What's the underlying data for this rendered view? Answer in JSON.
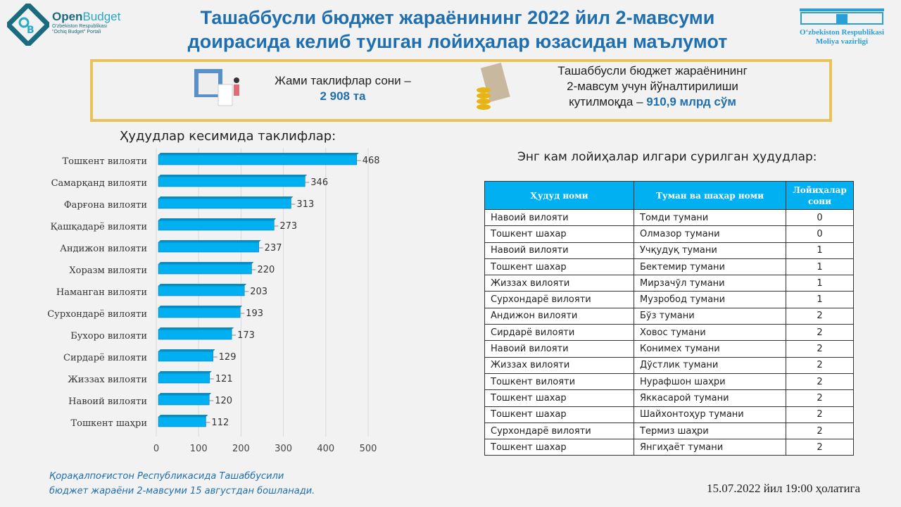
{
  "title": "Ташаббусли бюджет жараёнининг 2022 йил 2-мавсуми доирасида келиб тушган лойиҳалар юзасидан маълумот",
  "logo_left": {
    "name_bold": "Open",
    "name_light": "Budget",
    "line1": "O'zbekiston Respublikasi",
    "line2": "\"Ochiq Budget\" Portali"
  },
  "logo_right": {
    "line1": "O‘zbekiston Respublikasi",
    "line2": "Moliya vazirligi"
  },
  "banner": {
    "left_text": "Жами таклифлар сони –",
    "left_value": "2 908 та",
    "right_line1": "Ташаббусли бюджет жараёнининг",
    "right_line2": "2-мавсум учун йўналтирилиши",
    "right_line3": "кутилмоқда –",
    "right_value": "910,9 млрд сўм"
  },
  "colors": {
    "accent": "#1f6fb0",
    "bar": "#00b0f0",
    "border": "#e8c35a"
  },
  "chart_data": {
    "type": "bar",
    "orientation": "horizontal",
    "title": "Ҳудудлар кесимида таклифлар:",
    "categories": [
      "Тошкент вилояти",
      "Самарқанд вилояти",
      "Фарғона вилояти",
      "Қашқадарё вилояти",
      "Андижон вилояти",
      "Хоразм вилояти",
      "Наманган вилояти",
      "Сурхондарё вилояти",
      "Бухоро вилояти",
      "Сирдарё вилояти",
      "Жиззах вилояти",
      "Навоий вилояти",
      "Тошкент шаҳри"
    ],
    "values": [
      468,
      346,
      313,
      273,
      237,
      220,
      203,
      193,
      173,
      129,
      121,
      120,
      112
    ],
    "xlim": [
      0,
      500
    ],
    "xticks": [
      "0",
      "100",
      "200",
      "300",
      "400",
      "500"
    ],
    "grid": true
  },
  "table": {
    "title": "Энг кам лойиҳалар илгари сурилган ҳудудлар:",
    "headers": [
      "Ҳудуд номи",
      "Туман ва шаҳар номи",
      "Лойиҳалар сони"
    ],
    "rows": [
      [
        "Навоий вилояти",
        "Томди тумани",
        "0"
      ],
      [
        "Тошкент шахар",
        "Олмазор тумани",
        "0"
      ],
      [
        "Навоий вилояти",
        "Учқудуқ тумани",
        "1"
      ],
      [
        "Тошкент шахар",
        "Бектемир тумани",
        "1"
      ],
      [
        "Жиззах вилояти",
        "Мирзачўл тумани",
        "1"
      ],
      [
        "Сурхондарё вилояти",
        "Музробод тумани",
        "1"
      ],
      [
        "Андижон вилояти",
        "Бўз тумани",
        "2"
      ],
      [
        "Сирдарё вилояти",
        "Ховос тумани",
        "2"
      ],
      [
        "Навоий вилояти",
        "Конимех тумани",
        "2"
      ],
      [
        "Жиззах вилояти",
        "Дўстлик тумани",
        "2"
      ],
      [
        "Тошкент вилояти",
        "Нурафшон шаҳри",
        "2"
      ],
      [
        "Тошкент шахар",
        "Яккасарой тумани",
        "2"
      ],
      [
        "Тошкент шахар",
        "Шайхонтоҳур тумани",
        "2"
      ],
      [
        "Сурхондарё вилояти",
        "Термиз шаҳри",
        "2"
      ],
      [
        "Тошкент шахар",
        "Янгиҳаёт тумани",
        "2"
      ]
    ]
  },
  "note": {
    "line1": "Қорақалпоғистон Республикасида Ташаббусили",
    "line2": "бюджет жараёни 2-мавсуми 15 августдан бошланади."
  },
  "date": "15.07.2022 йил 19:00 ҳолатига"
}
